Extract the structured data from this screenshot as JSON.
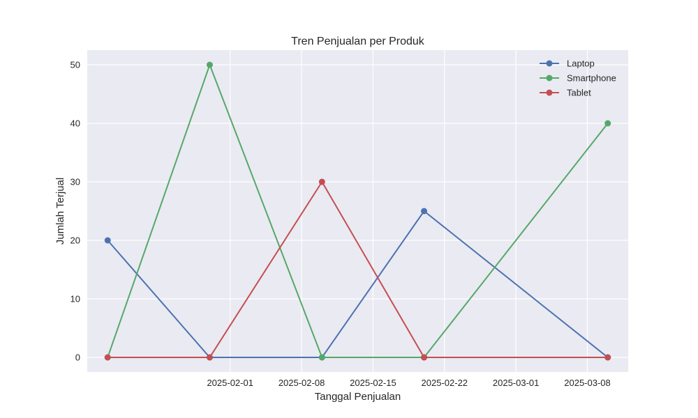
{
  "chart_data": {
    "type": "line",
    "title": "Tren Penjualan per Produk",
    "xlabel": "Tanggal Penjualan",
    "ylabel": "Jumlah Terjual",
    "x": [
      "2025-01-20",
      "2025-01-30",
      "2025-02-10",
      "2025-02-20",
      "2025-03-10"
    ],
    "x_ticks": [
      "2025-02-01",
      "2025-02-08",
      "2025-02-15",
      "2025-02-22",
      "2025-03-01",
      "2025-03-08"
    ],
    "y_ticks": [
      0,
      10,
      20,
      30,
      40,
      50
    ],
    "xlim": [
      "2025-01-18",
      "2025-03-12"
    ],
    "ylim": [
      -2.5,
      52.5
    ],
    "grid": true,
    "legend_position": "top-right",
    "series": [
      {
        "name": "Laptop",
        "color": "#4c72b0",
        "values": [
          20,
          0,
          0,
          25,
          0
        ]
      },
      {
        "name": "Smartphone",
        "color": "#55a868",
        "values": [
          0,
          50,
          0,
          0,
          40
        ]
      },
      {
        "name": "Tablet",
        "color": "#c44e52",
        "values": [
          0,
          0,
          30,
          0,
          0
        ]
      }
    ]
  }
}
